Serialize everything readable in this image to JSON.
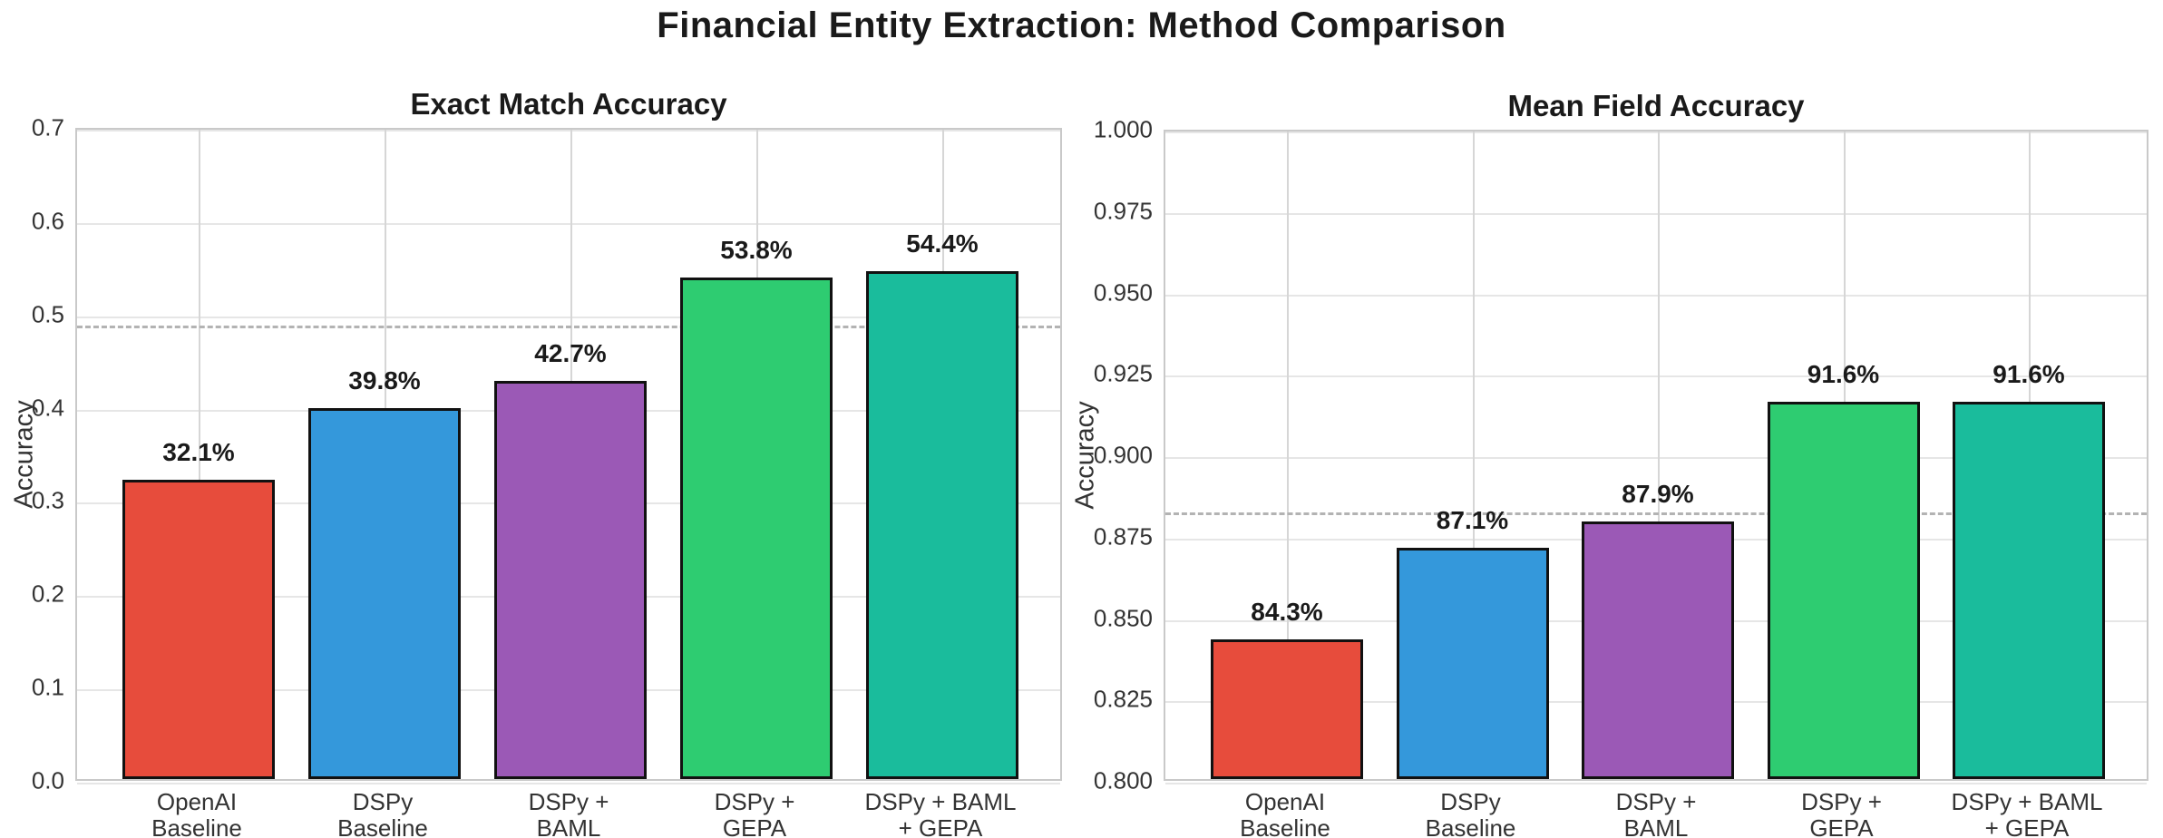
{
  "figure": {
    "title": "Financial Entity Extraction: Method Comparison",
    "background": "#ffffff"
  },
  "palette": {
    "openai_baseline": "#e74c3c",
    "dspy_baseline": "#3498db",
    "dspy_baml": "#9b59b6",
    "dspy_gepa": "#2ecc71",
    "dspy_baml_gepa": "#1abc9c",
    "bar_edge": "#111111",
    "grid_horizontal": "#e6e6e6",
    "grid_vertical": "#d6d6d6",
    "spine": "#c9c9c9",
    "reference_line": "#b3b3b3",
    "title_text": "#1a1a1a",
    "tick_text": "#333333"
  },
  "chart_data": [
    {
      "type": "bar",
      "title": "Exact Match Accuracy",
      "xlabel": "",
      "ylabel": "Accuracy",
      "categories": [
        "OpenAI\nBaseline",
        "DSPy\nBaseline",
        "DSPy +\nBAML",
        "DSPy +\nGEPA",
        "DSPy + BAML\n+ GEPA"
      ],
      "values": [
        0.321,
        0.398,
        0.427,
        0.538,
        0.544
      ],
      "bar_labels": [
        "32.1%",
        "39.8%",
        "42.7%",
        "53.8%",
        "54.4%"
      ],
      "bar_colors": [
        "#e74c3c",
        "#3498db",
        "#9b59b6",
        "#2ecc71",
        "#1abc9c"
      ],
      "ylim": [
        0.0,
        0.7
      ],
      "yticks": [
        0.0,
        0.1,
        0.2,
        0.3,
        0.4,
        0.5,
        0.6,
        0.7
      ],
      "ytick_labels": [
        "0.0",
        "0.1",
        "0.2",
        "0.3",
        "0.4",
        "0.5",
        "0.6",
        "0.7"
      ],
      "reference_line": 0.49,
      "grid": true,
      "legend": null
    },
    {
      "type": "bar",
      "title": "Mean Field Accuracy",
      "xlabel": "",
      "ylabel": "Accuracy",
      "categories": [
        "OpenAI\nBaseline",
        "DSPy\nBaseline",
        "DSPy +\nBAML",
        "DSPy +\nGEPA",
        "DSPy + BAML\n+ GEPA"
      ],
      "values": [
        0.843,
        0.871,
        0.879,
        0.916,
        0.916
      ],
      "bar_labels": [
        "84.3%",
        "87.1%",
        "87.9%",
        "91.6%",
        "91.6%"
      ],
      "bar_colors": [
        "#e74c3c",
        "#3498db",
        "#9b59b6",
        "#2ecc71",
        "#1abc9c"
      ],
      "ylim": [
        0.8,
        1.0
      ],
      "yticks": [
        0.8,
        0.825,
        0.85,
        0.875,
        0.9,
        0.925,
        0.95,
        0.975,
        1.0
      ],
      "ytick_labels": [
        "0.800",
        "0.825",
        "0.850",
        "0.875",
        "0.900",
        "0.925",
        "0.950",
        "0.975",
        "1.000"
      ],
      "reference_line": 0.883,
      "grid": true,
      "legend": null
    }
  ]
}
